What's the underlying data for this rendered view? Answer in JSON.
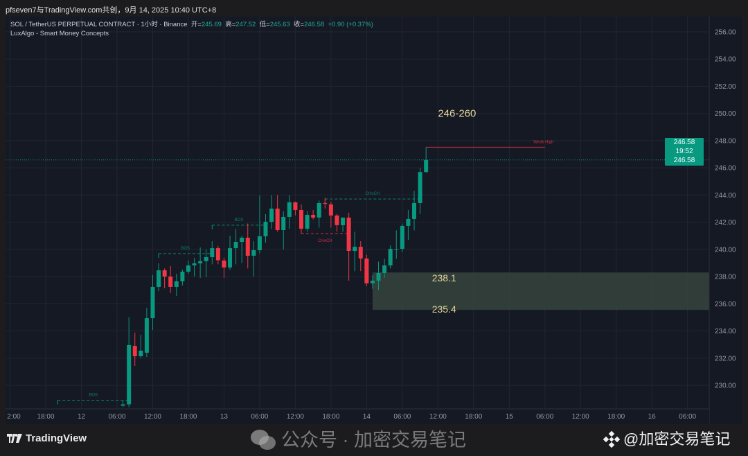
{
  "header": {
    "attribution": "pfseven7与TradingView.com共创，9月 14, 2025 10:40 UTC+8"
  },
  "legend": {
    "symbol": "SOL / TetherUS PERPETUAL CONTRACT · 1小时 · Binance",
    "open_label": "开=",
    "open": "245.69",
    "high_label": "高=",
    "high": "247.52",
    "low_label": "低=",
    "low": "245.63",
    "close_label": "收=",
    "close": "246.58",
    "change": "+0.90 (+0.37%)",
    "indicator": "LuxAlgo - Smart Money Concepts"
  },
  "price_tag": {
    "price": "246.58",
    "countdown": "19:52",
    "price2": "246.58"
  },
  "colors": {
    "up": "#089981",
    "down": "#f23645",
    "background": "#151924",
    "zone": "#3a4a40",
    "annotation": "#e6d49a"
  },
  "footer": {
    "logo": "TradingView",
    "watermark_wechat": "公众号 · 加密交易笔记",
    "watermark_binance": "@加密交易笔记"
  },
  "chart_data": {
    "type": "candlestick",
    "symbol": "SOLUSDT.P",
    "interval": "1h",
    "ylim": [
      229,
      256.5
    ],
    "y_ticks": [
      "256.00",
      "254.00",
      "252.00",
      "250.00",
      "248.00",
      "246.00",
      "244.00",
      "242.00",
      "240.00",
      "238.00",
      "236.00",
      "234.00",
      "232.00",
      "230.00"
    ],
    "x_ticks": [
      {
        "t": "09-11 12:00",
        "label": "2:00"
      },
      {
        "t": "09-11 18:00",
        "label": "18:00"
      },
      {
        "t": "09-12 00:00",
        "label": "12"
      },
      {
        "t": "09-12 06:00",
        "label": "06:00"
      },
      {
        "t": "09-12 12:00",
        "label": "12:00"
      },
      {
        "t": "09-12 18:00",
        "label": "18:00"
      },
      {
        "t": "09-13 00:00",
        "label": "13"
      },
      {
        "t": "09-13 06:00",
        "label": "06:00"
      },
      {
        "t": "09-13 12:00",
        "label": "12:00"
      },
      {
        "t": "09-13 18:00",
        "label": "18:00"
      },
      {
        "t": "09-14 00:00",
        "label": "14"
      },
      {
        "t": "09-14 06:00",
        "label": "06:00"
      },
      {
        "t": "09-14 12:00",
        "label": "12:00"
      },
      {
        "t": "09-14 18:00",
        "label": "18:00"
      },
      {
        "t": "09-15 00:00",
        "label": "15"
      },
      {
        "t": "09-15 06:00",
        "label": "06:00"
      },
      {
        "t": "09-15 12:00",
        "label": "12:00"
      },
      {
        "t": "09-15 18:00",
        "label": "18:00"
      },
      {
        "t": "09-16 00:00",
        "label": "16"
      },
      {
        "t": "09-16 06:00",
        "label": "06:00"
      }
    ],
    "current_price": 246.58,
    "candles": [
      [
        "09-12 07:00",
        228.5,
        228.9,
        228.4,
        228.6
      ],
      [
        "09-12 08:00",
        228.6,
        235.0,
        228.4,
        232.96
      ],
      [
        "09-12 09:00",
        232.9,
        233.87,
        231.43,
        232.14
      ],
      [
        "09-12 10:00",
        232.14,
        233.72,
        232.0,
        232.55
      ],
      [
        "09-12 11:00",
        232.4,
        235.71,
        232.09,
        234.94
      ],
      [
        "09-12 12:00",
        234.94,
        238.11,
        234.08,
        237.24
      ],
      [
        "09-12 13:00",
        237.24,
        238.97,
        236.93,
        238.46
      ],
      [
        "09-12 14:00",
        238.46,
        238.6,
        237.14,
        238.0
      ],
      [
        "09-12 15:00",
        238.0,
        238.77,
        236.78,
        237.24
      ],
      [
        "09-12 16:00",
        237.24,
        238.21,
        236.58,
        237.65
      ],
      [
        "09-12 17:00",
        237.65,
        238.51,
        237.34,
        238.36
      ],
      [
        "09-12 18:00",
        238.36,
        239.18,
        238.2,
        238.82
      ],
      [
        "09-12 19:00",
        238.82,
        239.38,
        238.0,
        238.97
      ],
      [
        "09-12 20:00",
        238.97,
        240.14,
        237.9,
        239.13
      ],
      [
        "09-12 21:00",
        239.13,
        240.0,
        237.95,
        239.43
      ],
      [
        "09-12 22:00",
        239.43,
        240.6,
        238.9,
        240.09
      ],
      [
        "09-12 23:00",
        240.09,
        240.25,
        238.9,
        239.2
      ],
      [
        "09-13 00:00",
        239.18,
        239.4,
        237.9,
        238.67
      ],
      [
        "09-13 01:00",
        238.67,
        241.0,
        238.5,
        240.09
      ],
      [
        "09-13 02:00",
        240.09,
        241.5,
        238.9,
        240.55
      ],
      [
        "09-13 03:00",
        240.55,
        241.0,
        239.0,
        240.86
      ],
      [
        "09-13 04:00",
        240.86,
        241.9,
        238.6,
        239.53
      ],
      [
        "09-13 05:00",
        239.53,
        240.6,
        238.0,
        239.94
      ],
      [
        "09-13 06:00",
        239.94,
        243.97,
        239.7,
        240.96
      ],
      [
        "09-13 07:00",
        240.96,
        242.6,
        240.5,
        242.03
      ],
      [
        "09-13 08:00",
        242.03,
        244.0,
        241.5,
        243.0
      ],
      [
        "09-13 09:00",
        243.0,
        244.0,
        241.3,
        241.42
      ],
      [
        "09-13 10:00",
        241.42,
        242.8,
        240.0,
        242.39
      ],
      [
        "09-13 11:00",
        242.39,
        244.0,
        241.5,
        243.46
      ],
      [
        "09-13 12:00",
        243.46,
        243.5,
        242.5,
        242.9
      ],
      [
        "09-13 13:00",
        242.9,
        243.3,
        241.2,
        241.52
      ],
      [
        "09-13 14:00",
        241.52,
        242.8,
        241.3,
        242.54
      ],
      [
        "09-13 15:00",
        242.54,
        242.9,
        242.2,
        242.34
      ],
      [
        "09-13 16:00",
        242.34,
        243.6,
        241.6,
        243.41
      ],
      [
        "09-13 17:00",
        243.41,
        243.8,
        243.0,
        243.35
      ],
      [
        "09-13 18:00",
        243.31,
        243.5,
        241.6,
        242.49
      ],
      [
        "09-13 19:00",
        242.49,
        242.6,
        241.3,
        241.78
      ],
      [
        "09-13 20:00",
        241.78,
        242.3,
        241.3,
        242.34
      ],
      [
        "09-13 21:00",
        242.34,
        242.7,
        237.7,
        239.89
      ],
      [
        "09-13 22:00",
        239.89,
        241.3,
        238.4,
        240.19
      ],
      [
        "09-13 23:00",
        240.19,
        240.6,
        238.4,
        239.33
      ],
      [
        "09-14 00:00",
        239.33,
        239.6,
        237.3,
        237.5
      ],
      [
        "09-14 01:00",
        237.5,
        238.1,
        237.1,
        237.7
      ],
      [
        "09-14 02:00",
        237.7,
        239.1,
        237.0,
        238.26
      ],
      [
        "09-14 03:00",
        238.26,
        239.3,
        237.9,
        238.82
      ],
      [
        "09-14 04:00",
        238.82,
        240.3,
        238.6,
        240.04
      ],
      [
        "09-14 05:00",
        240.0,
        241.4,
        239.3,
        240.0
      ],
      [
        "09-14 06:00",
        240.04,
        241.9,
        239.8,
        241.73
      ],
      [
        "09-14 07:00",
        241.73,
        242.9,
        240.7,
        242.24
      ],
      [
        "09-14 08:00",
        242.24,
        244.3,
        241.4,
        243.41
      ],
      [
        "09-14 09:00",
        243.41,
        246.0,
        242.6,
        245.69
      ],
      [
        "09-14 10:00",
        245.69,
        247.52,
        245.63,
        246.58
      ]
    ],
    "structure": [
      {
        "label": "BOS",
        "kind": "bullish",
        "price": 228.9,
        "from": "09-11 20:00",
        "to": "09-12 08:00"
      },
      {
        "label": "BOS",
        "kind": "bullish",
        "price": 239.69,
        "from": "09-12 13:00",
        "to": "09-12 22:00"
      },
      {
        "label": "BOS",
        "kind": "bullish",
        "price": 241.78,
        "from": "09-12 22:00",
        "to": "09-13 07:00"
      },
      {
        "label": "CHoCH",
        "kind": "bearish",
        "price": 241.16,
        "from": "09-13 13:00",
        "to": "09-13 21:00"
      },
      {
        "label": "CHoCH",
        "kind": "bullish",
        "price": 243.71,
        "from": "09-13 17:00",
        "to": "09-14 09:00"
      },
      {
        "label": "Weak High",
        "kind": "weak-high",
        "price": 247.52,
        "from": "09-14 10:00",
        "to": "09-15 06:00"
      }
    ],
    "zone": {
      "top": 238.3,
      "bottom": 235.55,
      "from": "09-14 01:00"
    },
    "annotations": [
      {
        "text": "246-260",
        "price": 250.0,
        "t": "09-14 12:30"
      },
      {
        "text": "238.1",
        "price": 237.9,
        "t": "09-14 11:30"
      },
      {
        "text": "235.4",
        "price": 235.6,
        "t": "09-14 11:30"
      }
    ]
  }
}
